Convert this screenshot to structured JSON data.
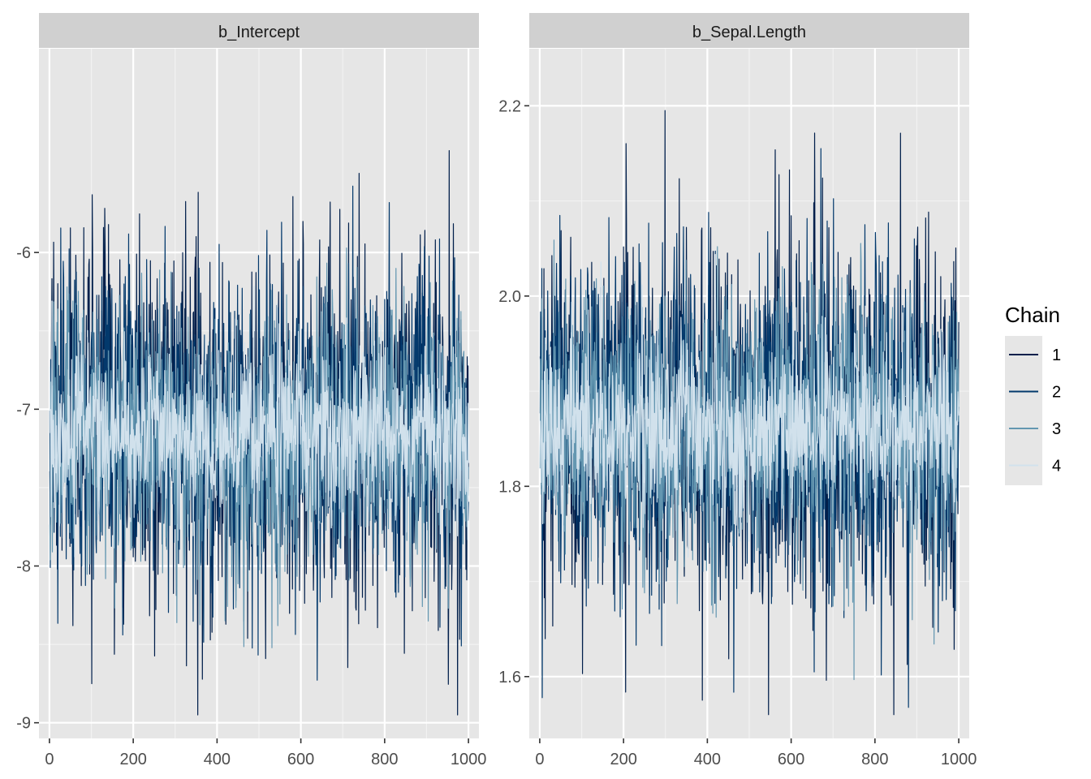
{
  "chart_data": [
    {
      "type": "line",
      "title": "b_Intercept",
      "xlabel": "",
      "ylabel": "",
      "xlim": [
        -25,
        1025
      ],
      "ylim": [
        -9.1,
        -4.7
      ],
      "xticks": [
        0,
        200,
        400,
        600,
        800,
        1000
      ],
      "xtick_labels": [
        "0",
        "200",
        "400",
        "600",
        "800",
        "1000"
      ],
      "yticks": [
        -9,
        -8,
        -7,
        -6
      ],
      "ytick_labels": [
        "-9",
        "-8",
        "-7",
        "-6"
      ],
      "grid": true,
      "trace": {
        "iterations": 1000,
        "center": -7.15,
        "sd": 0.5,
        "min": -8.95,
        "max": -5.35
      },
      "series_names": [
        "1",
        "2",
        "3",
        "4"
      ]
    },
    {
      "type": "line",
      "title": "b_Sepal.Length",
      "xlabel": "",
      "ylabel": "",
      "xlim": [
        -25,
        1025
      ],
      "ylim": [
        1.535,
        2.26
      ],
      "xticks": [
        0,
        200,
        400,
        600,
        800,
        1000
      ],
      "xtick_labels": [
        "0",
        "200",
        "400",
        "600",
        "800",
        "1000"
      ],
      "yticks": [
        1.6,
        1.8,
        2.0,
        2.2
      ],
      "ytick_labels": [
        "1.6",
        "1.8",
        "2.0",
        "2.2"
      ],
      "grid": true,
      "trace": {
        "iterations": 1000,
        "center": 1.865,
        "sd": 0.085,
        "min": 1.56,
        "max": 2.195
      },
      "series_names": [
        "1",
        "2",
        "3",
        "4"
      ]
    }
  ],
  "legend": {
    "title": "Chain",
    "position": "right",
    "items": [
      {
        "label": "1",
        "color": "#011f4b"
      },
      {
        "label": "2",
        "color": "#03396c"
      },
      {
        "label": "3",
        "color": "#6497b1"
      },
      {
        "label": "4",
        "color": "#d1e1ec"
      }
    ]
  },
  "colors": {
    "panel_bg": "#e6e6e6",
    "strip_bg": "#d0d0d0",
    "grid_major": "#ffffff",
    "axis_text": "#4d4d4d",
    "strip_text": "#1a1a1a"
  }
}
